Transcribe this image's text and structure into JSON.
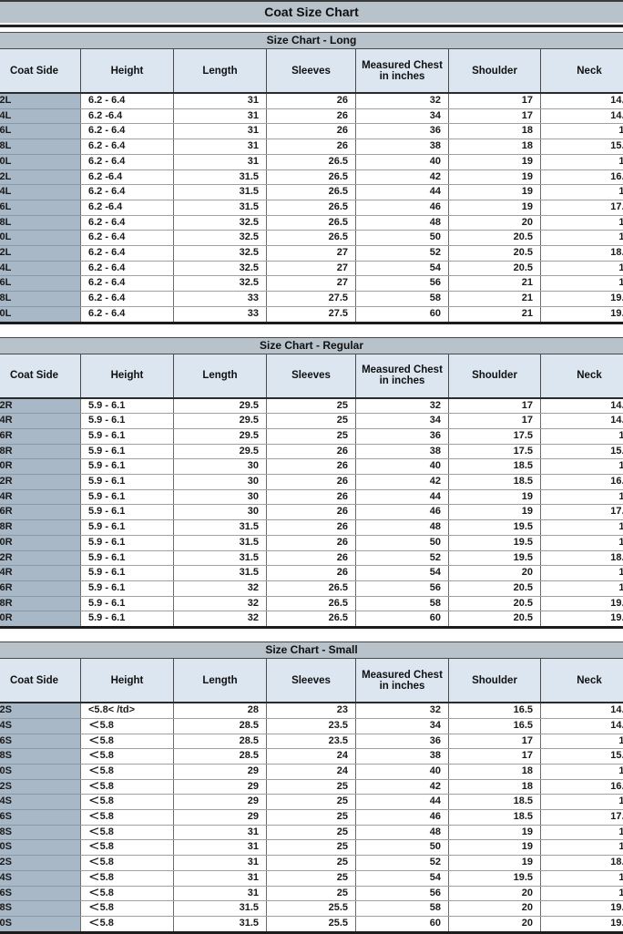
{
  "title": "Coat Size Chart",
  "columns": [
    "Coat Side",
    "Height",
    "Length",
    "Sleeves",
    "Measured Chest\nin inches",
    "Shoulder",
    "Neck"
  ],
  "colors": {
    "title_bar_bg": "#b7c2cb",
    "section_heading_bg": "#b7c2cb",
    "column_header_bg": "#dce6f1",
    "coat_side_column_bg": "#a9b8c6"
  },
  "sections": [
    {
      "heading": "Size Chart - Long",
      "rows": [
        [
          "2L",
          "6.2 - 6.4",
          "31",
          "26",
          "32",
          "17",
          "14."
        ],
        [
          "4L",
          "6.2 -6.4",
          "31",
          "26",
          "34",
          "17",
          "14."
        ],
        [
          "6L",
          "6.2 - 6.4",
          "31",
          "26",
          "36",
          "18",
          "1"
        ],
        [
          "8L",
          "6.2 - 6.4",
          "31",
          "26",
          "38",
          "18",
          "15."
        ],
        [
          "0L",
          "6.2 - 6.4",
          "31",
          "26.5",
          "40",
          "19",
          "1"
        ],
        [
          "2L",
          "6.2 -6.4",
          "31.5",
          "26.5",
          "42",
          "19",
          "16."
        ],
        [
          "4L",
          "6.2 - 6.4",
          "31.5",
          "26.5",
          "44",
          "19",
          "1"
        ],
        [
          "6L",
          "6.2 -6.4",
          "31.5",
          "26.5",
          "46",
          "19",
          "17."
        ],
        [
          "8L",
          "6.2 - 6.4",
          "32.5",
          "26.5",
          "48",
          "20",
          "1"
        ],
        [
          "0L",
          "6.2 - 6.4",
          "32.5",
          "26.5",
          "50",
          "20.5",
          "1"
        ],
        [
          "2L",
          "6.2 - 6.4",
          "32.5",
          "27",
          "52",
          "20.5",
          "18."
        ],
        [
          "4L",
          "6.2 - 6.4",
          "32.5",
          "27",
          "54",
          "20.5",
          "1"
        ],
        [
          "6L",
          "6.2 - 6.4",
          "32.5",
          "27",
          "56",
          "21",
          "1"
        ],
        [
          "8L",
          "6.2 - 6.4",
          "33",
          "27.5",
          "58",
          "21",
          "19."
        ],
        [
          "0L",
          "6.2 - 6.4",
          "33",
          "27.5",
          "60",
          "21",
          "19."
        ]
      ]
    },
    {
      "heading": "Size Chart - Regular",
      "rows": [
        [
          "2R",
          "5.9 - 6.1",
          "29.5",
          "25",
          "32",
          "17",
          "14."
        ],
        [
          "4R",
          "5.9 - 6.1",
          "29.5",
          "25",
          "34",
          "17",
          "14."
        ],
        [
          "6R",
          "5.9 - 6.1",
          "29.5",
          "25",
          "36",
          "17.5",
          "1"
        ],
        [
          "8R",
          "5.9 - 6.1",
          "29.5",
          "26",
          "38",
          "17.5",
          "15."
        ],
        [
          "0R",
          "5.9 - 6.1",
          "30",
          "26",
          "40",
          "18.5",
          "1"
        ],
        [
          "2R",
          "5.9 - 6.1",
          "30",
          "26",
          "42",
          "18.5",
          "16."
        ],
        [
          "4R",
          "5.9 - 6.1",
          "30",
          "26",
          "44",
          "19",
          "1"
        ],
        [
          "6R",
          "5.9 - 6.1",
          "30",
          "26",
          "46",
          "19",
          "17."
        ],
        [
          "8R",
          "5.9 - 6.1",
          "31.5",
          "26",
          "48",
          "19.5",
          "1"
        ],
        [
          "0R",
          "5.9 - 6.1",
          "31.5",
          "26",
          "50",
          "19.5",
          "1"
        ],
        [
          "2R",
          "5.9 - 6.1",
          "31.5",
          "26",
          "52",
          "19.5",
          "18."
        ],
        [
          "4R",
          "5.9 - 6.1",
          "31.5",
          "26",
          "54",
          "20",
          "1"
        ],
        [
          "6R",
          "5.9 - 6.1",
          "32",
          "26.5",
          "56",
          "20.5",
          "1"
        ],
        [
          "8R",
          "5.9 - 6.1",
          "32",
          "26.5",
          "58",
          "20.5",
          "19."
        ],
        [
          "0R",
          "5.9 - 6.1",
          "32",
          "26.5",
          "60",
          "20.5",
          "19."
        ]
      ]
    },
    {
      "heading": "Size Chart - Small",
      "rows": [
        [
          "2S",
          "<5.8< /td>",
          "28",
          "23",
          "32",
          "16.5",
          "14."
        ],
        [
          "4S",
          "<5.8",
          "28.5",
          "23.5",
          "34",
          "16.5",
          "14."
        ],
        [
          "6S",
          "<5.8",
          "28.5",
          "23.5",
          "36",
          "17",
          "1"
        ],
        [
          "8S",
          "<5.8",
          "28.5",
          "24",
          "38",
          "17",
          "15."
        ],
        [
          "0S",
          "<5.8",
          "29",
          "24",
          "40",
          "18",
          "1"
        ],
        [
          "2S",
          "<5.8",
          "29",
          "25",
          "42",
          "18",
          "16."
        ],
        [
          "4S",
          "<5.8",
          "29",
          "25",
          "44",
          "18.5",
          "1"
        ],
        [
          "6S",
          "<5.8",
          "29",
          "25",
          "46",
          "18.5",
          "17."
        ],
        [
          "8S",
          "<5.8",
          "31",
          "25",
          "48",
          "19",
          "1"
        ],
        [
          "0S",
          "<5.8",
          "31",
          "25",
          "50",
          "19",
          "1"
        ],
        [
          "2S",
          "<5.8",
          "31",
          "25",
          "52",
          "19",
          "18."
        ],
        [
          "4S",
          "<5.8",
          "31",
          "25",
          "54",
          "19.5",
          "1"
        ],
        [
          "6S",
          "<5.8",
          "31",
          "25",
          "56",
          "20",
          "1"
        ],
        [
          "8S",
          "<5.8",
          "31.5",
          "25.5",
          "58",
          "20",
          "19."
        ],
        [
          "0S",
          "<5.8",
          "31.5",
          "25.5",
          "60",
          "20",
          "19."
        ]
      ]
    }
  ]
}
